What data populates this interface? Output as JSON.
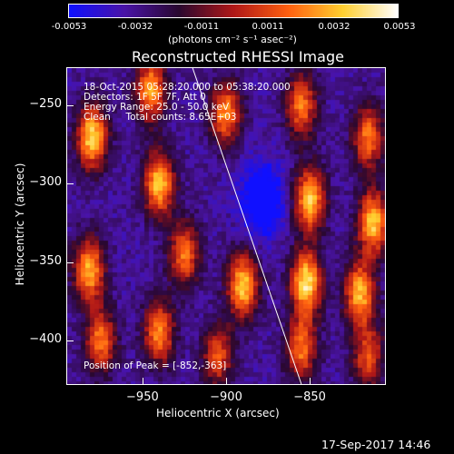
{
  "colorbar": {
    "ticks": [
      "-0.0053",
      "-0.0032",
      "-0.0011",
      "0.0011",
      "0.0032",
      "0.0053"
    ],
    "tick_values": [
      -0.0053,
      -0.0032,
      -0.0011,
      0.0011,
      0.0032,
      0.0053
    ],
    "units_label": "(photons cm⁻² s⁻¹ asec⁻²)",
    "colors": [
      "#1010ff",
      "#4a14a8",
      "#2a0830",
      "#b01818",
      "#ff6010",
      "#ffd030",
      "#ffffff"
    ]
  },
  "chart_data": {
    "type": "heatmap",
    "title": "Reconstructed RHESSI Image",
    "xlabel": "Heliocentric X (arcsec)",
    "ylabel": "Heliocentric Y (arcsec)",
    "xlim": [
      -995,
      -805
    ],
    "ylim": [
      -428,
      -226
    ],
    "xticks": [
      -950,
      -900,
      -850
    ],
    "xtick_labels": [
      "−950",
      "−900",
      "−850"
    ],
    "yticks": [
      -250,
      -300,
      -350,
      -400
    ],
    "ytick_labels": [
      "−250",
      "−300",
      "−350",
      "−400"
    ],
    "peak": {
      "x": -852,
      "y": -363
    },
    "limb_line": [
      [
        -920,
        -226
      ],
      [
        -855,
        -428
      ]
    ],
    "sources": [
      {
        "x": -980,
        "y": -270,
        "strength": 0.95
      },
      {
        "x": -982,
        "y": -355,
        "strength": 0.85
      },
      {
        "x": -975,
        "y": -400,
        "strength": 0.7
      },
      {
        "x": -945,
        "y": -240,
        "strength": 0.8
      },
      {
        "x": -940,
        "y": -300,
        "strength": 0.9
      },
      {
        "x": -940,
        "y": -395,
        "strength": 0.75
      },
      {
        "x": -925,
        "y": -345,
        "strength": 0.7
      },
      {
        "x": -900,
        "y": -255,
        "strength": 0.75
      },
      {
        "x": -890,
        "y": -365,
        "strength": 0.9
      },
      {
        "x": -905,
        "y": -410,
        "strength": 0.6
      },
      {
        "x": -855,
        "y": -250,
        "strength": 0.7
      },
      {
        "x": -850,
        "y": -310,
        "strength": 0.9
      },
      {
        "x": -852,
        "y": -363,
        "strength": 1.0
      },
      {
        "x": -855,
        "y": -405,
        "strength": 0.7
      },
      {
        "x": -815,
        "y": -270,
        "strength": 0.7
      },
      {
        "x": -812,
        "y": -325,
        "strength": 0.9
      },
      {
        "x": -820,
        "y": -370,
        "strength": 0.85
      },
      {
        "x": -815,
        "y": -410,
        "strength": 0.6
      }
    ],
    "min_pos": {
      "x": -878,
      "y": -310,
      "strength": -0.9
    }
  },
  "info": {
    "time_range": "18-Oct-2015 05:28:20.000 to 05:38:20.000",
    "detectors": "Detectors: 1F 5F 7F, Att 0",
    "energy": "Energy Range: 25.0 - 50.0 keV",
    "clean": "Clean     Total counts: 8.65E+03",
    "peak_label": "Position of Peak = [-852,-363]"
  },
  "footer": {
    "timestamp": "17-Sep-2017 14:46"
  }
}
